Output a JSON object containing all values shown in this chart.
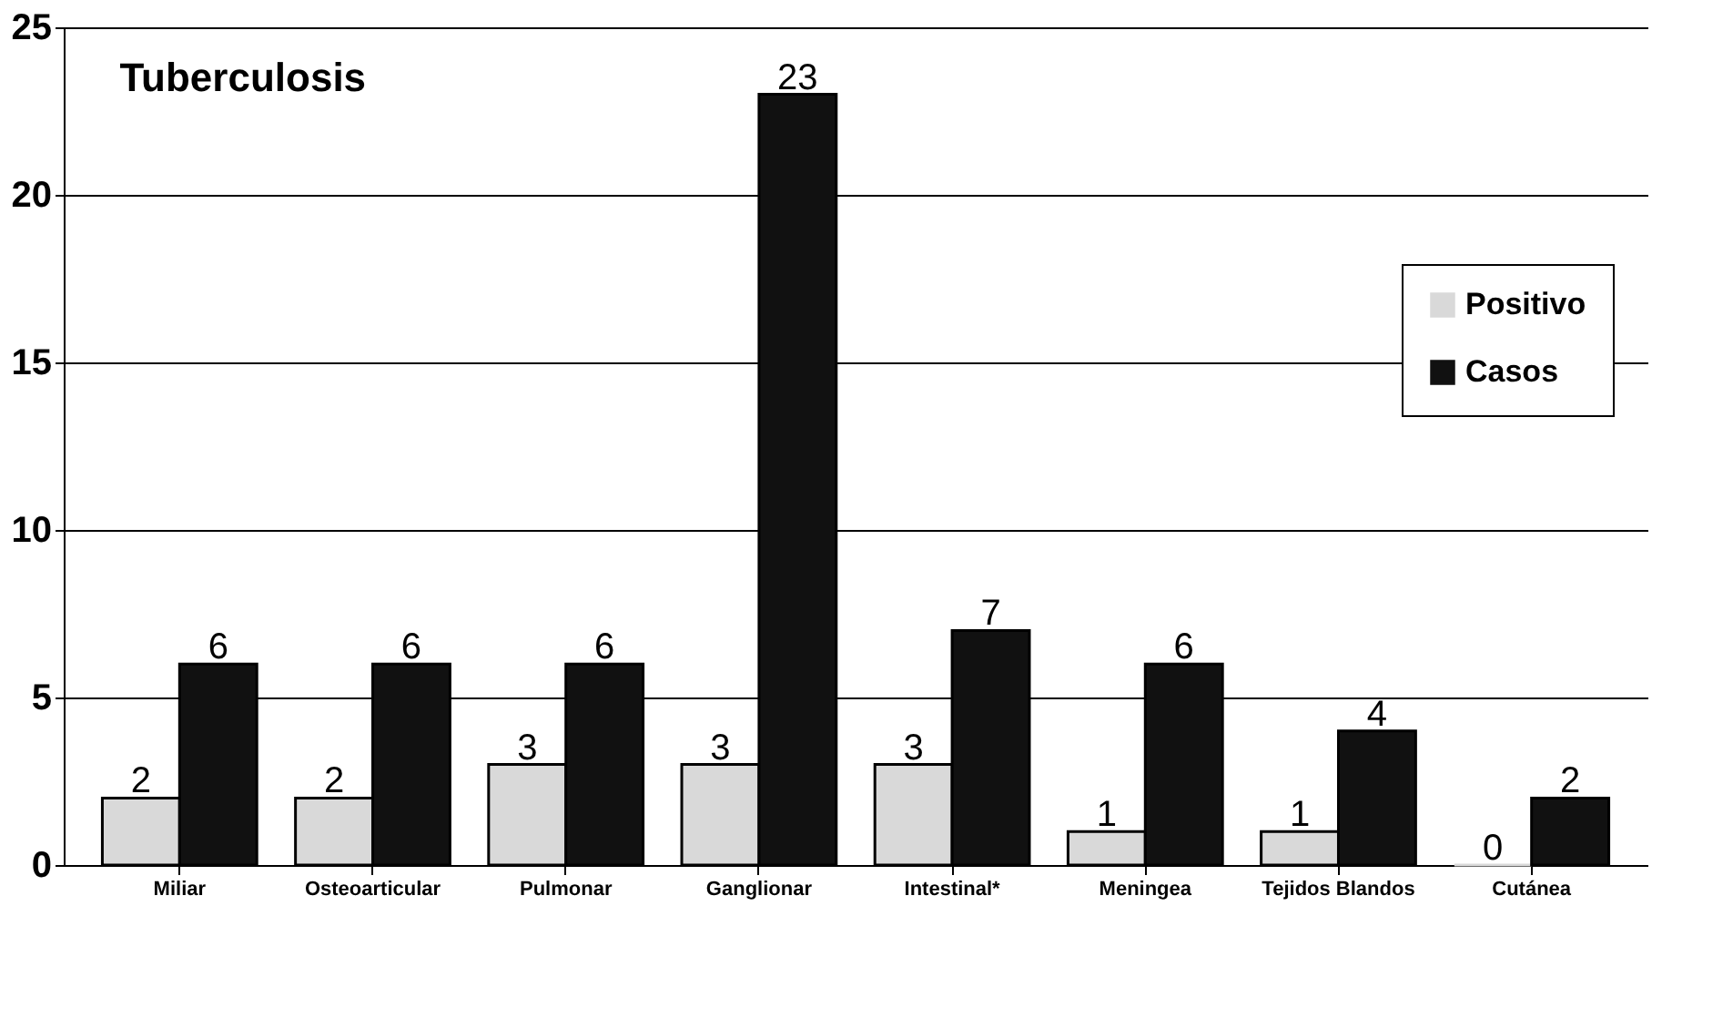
{
  "chart_data": {
    "type": "bar",
    "title": "Tuberculosis",
    "categories": [
      "Miliar",
      "Osteoarticular",
      "Pulmonar",
      "Ganglionar",
      "Intestinal*",
      "Meningea",
      "Tejidos Blandos",
      "Cutánea"
    ],
    "series": [
      {
        "name": "Positivo",
        "color": "#d9d9d9",
        "values": [
          2,
          2,
          3,
          3,
          3,
          1,
          1,
          0
        ]
      },
      {
        "name": "Casos",
        "color": "#111111",
        "values": [
          6,
          6,
          6,
          23,
          7,
          6,
          4,
          2
        ]
      }
    ],
    "ylim": [
      0,
      25
    ],
    "yticks": [
      0,
      5,
      10,
      15,
      20,
      25
    ],
    "grid": "y",
    "legend": "right",
    "data_labels": true
  }
}
